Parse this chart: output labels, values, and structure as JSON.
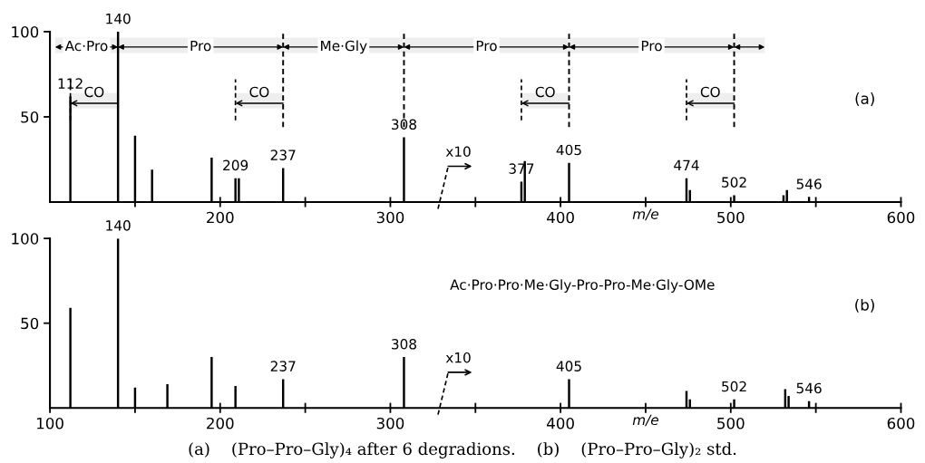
{
  "chart_data": [
    {
      "type": "bar",
      "xlabel": "m/e",
      "xlim": [
        100,
        600
      ],
      "ylim": [
        0,
        100
      ],
      "xticks": [
        {
          "value": 150,
          "label": null
        },
        200,
        {
          "value": 250,
          "label": null
        },
        300,
        {
          "value": 350,
          "label": null
        },
        400,
        {
          "value": 450,
          "label": null
        },
        500,
        {
          "value": 550,
          "label": null
        },
        600
      ],
      "yticks": [
        50,
        100
      ],
      "series": [
        {
          "color": "#000000",
          "x": [
            112,
            140,
            150,
            160,
            195,
            209,
            211,
            237,
            308,
            377,
            379,
            405,
            474,
            476,
            502,
            531,
            533,
            546
          ],
          "values": [
            62,
            100,
            39,
            19,
            26,
            14,
            14,
            20,
            38,
            12,
            24,
            23,
            14,
            7,
            4,
            4,
            7,
            3
          ]
        }
      ],
      "ref_lines": [
        {
          "axis": "x",
          "value": 237,
          "line_style": "dashed"
        },
        {
          "axis": "x",
          "value": 308,
          "line_style": "dashed"
        },
        {
          "axis": "x",
          "value": 405,
          "line_style": "dashed"
        },
        {
          "axis": "x",
          "value": 502,
          "line_style": "dashed"
        }
      ],
      "bands": [
        {
          "axis": "x",
          "from": 103,
          "to": 140,
          "label": "Ac·Pro"
        },
        {
          "axis": "x",
          "from": 140,
          "to": 237,
          "label": "Pro"
        },
        {
          "axis": "x",
          "from": 237,
          "to": 308,
          "label": "Me·Gly"
        },
        {
          "axis": "x",
          "from": 308,
          "to": 405,
          "label": "Pro"
        },
        {
          "axis": "x",
          "from": 405,
          "to": 502,
          "label": "Pro"
        },
        {
          "axis": "x",
          "from": 502,
          "to": 520,
          "label": null
        },
        {
          "axis": "x",
          "from": 140,
          "to": 112,
          "label": "CO"
        },
        {
          "axis": "x",
          "from": 237,
          "to": 209,
          "label": "CO"
        },
        {
          "axis": "x",
          "from": 405,
          "to": 377,
          "label": "CO"
        },
        {
          "axis": "x",
          "from": 502,
          "to": 474,
          "label": "CO"
        }
      ],
      "annotations": [
        {
          "text": "140",
          "x": 140,
          "y": 100
        },
        {
          "text": "112",
          "x": 112,
          "y": 62
        },
        {
          "text": "209",
          "x": 209,
          "y": 14
        },
        {
          "text": "237",
          "x": 237,
          "y": 20
        },
        {
          "text": "308",
          "x": 308,
          "y": 38
        },
        {
          "text": "377",
          "x": 377,
          "y": 12
        },
        {
          "text": "405",
          "x": 405,
          "y": 23
        },
        {
          "text": "474",
          "x": 474,
          "y": 14
        },
        {
          "text": "502",
          "x": 502,
          "y": 4
        },
        {
          "text": "546",
          "x": 546,
          "y": 3
        },
        "x10",
        "(a)"
      ]
    },
    {
      "type": "bar",
      "xlabel": "m/e",
      "xlim": [
        100,
        600
      ],
      "ylim": [
        0,
        100
      ],
      "xticks": [
        100,
        {
          "value": 150,
          "label": null
        },
        200,
        {
          "value": 250,
          "label": null
        },
        300,
        {
          "value": 350,
          "label": null
        },
        400,
        {
          "value": 450,
          "label": null
        },
        500,
        {
          "value": 550,
          "label": null
        },
        600
      ],
      "yticks": [
        50,
        100
      ],
      "series": [
        {
          "color": "#000000",
          "x": [
            112,
            140,
            150,
            169,
            195,
            209,
            237,
            308,
            405,
            474,
            476,
            502,
            532,
            534,
            546
          ],
          "values": [
            59,
            100,
            12,
            14,
            30,
            13,
            17,
            30,
            17,
            10,
            5,
            5,
            11,
            7,
            4
          ]
        }
      ],
      "annotations": [
        {
          "text": "140",
          "x": 140,
          "y": 100
        },
        {
          "text": "237",
          "x": 237,
          "y": 17
        },
        {
          "text": "308",
          "x": 308,
          "y": 30
        },
        {
          "text": "405",
          "x": 405,
          "y": 17
        },
        {
          "text": "502",
          "x": 502,
          "y": 5
        },
        {
          "text": "546",
          "x": 546,
          "y": 4
        },
        "x10",
        "Ac·Pro·Pro·Me·Gly-Pro-Pro-Me·Gly-OMe",
        "(b)",
        "(a)    (Pro–Pro–Gly)₄ after 6 degradions.    (b)    (Pro–Pro–Gly)₂ std."
      ]
    }
  ]
}
